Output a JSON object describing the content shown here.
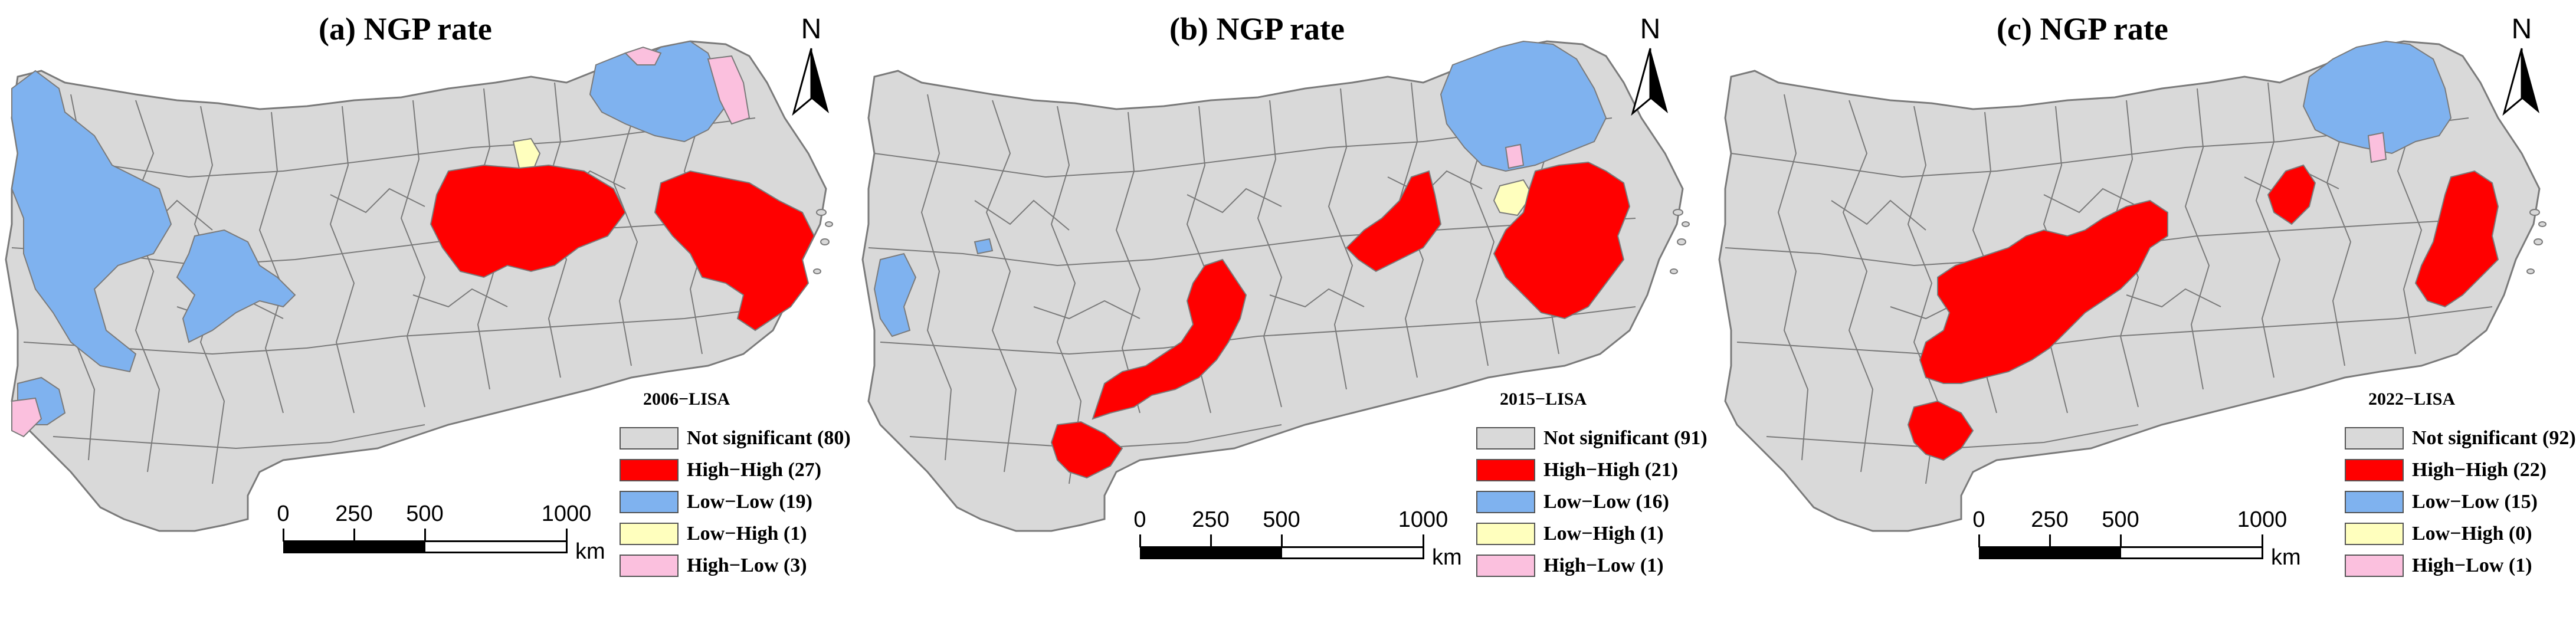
{
  "colors": {
    "not_significant": "#d9d9d9",
    "high_high": "#ff0000",
    "low_low": "#7fb2ef",
    "low_high": "#ffffbe",
    "high_low": "#fbc0de",
    "boundary": "#7a7a7a"
  },
  "north_arrow": {
    "letter": "N"
  },
  "scale": {
    "ticks": [
      "0",
      "250",
      "500",
      "1000"
    ],
    "unit": "km"
  },
  "panels": [
    {
      "title": "(a) NGP rate",
      "legend": {
        "title": "2006−LISA",
        "items": [
          {
            "label": "Not significant (80)",
            "color_key": "not_significant"
          },
          {
            "label": "High−High (27)",
            "color_key": "high_high"
          },
          {
            "label": "Low−Low (19)",
            "color_key": "low_low"
          },
          {
            "label": "Low−High (1)",
            "color_key": "low_high"
          },
          {
            "label": "High−Low (3)",
            "color_key": "high_low"
          }
        ]
      }
    },
    {
      "title": "(b) NGP rate",
      "legend": {
        "title": "2015−LISA",
        "items": [
          {
            "label": "Not significant (91)",
            "color_key": "not_significant"
          },
          {
            "label": "High−High (21)",
            "color_key": "high_high"
          },
          {
            "label": "Low−Low (16)",
            "color_key": "low_low"
          },
          {
            "label": "Low−High (1)",
            "color_key": "low_high"
          },
          {
            "label": "High−Low (1)",
            "color_key": "high_low"
          }
        ]
      }
    },
    {
      "title": "(c) NGP rate",
      "legend": {
        "title": "2022−LISA",
        "items": [
          {
            "label": "Not significant (92)",
            "color_key": "not_significant"
          },
          {
            "label": "High−High (22)",
            "color_key": "high_high"
          },
          {
            "label": "Low−Low (15)",
            "color_key": "low_low"
          },
          {
            "label": "Low−High (0)",
            "color_key": "low_high"
          },
          {
            "label": "High−Low (1)",
            "color_key": "high_low"
          }
        ]
      }
    }
  ]
}
